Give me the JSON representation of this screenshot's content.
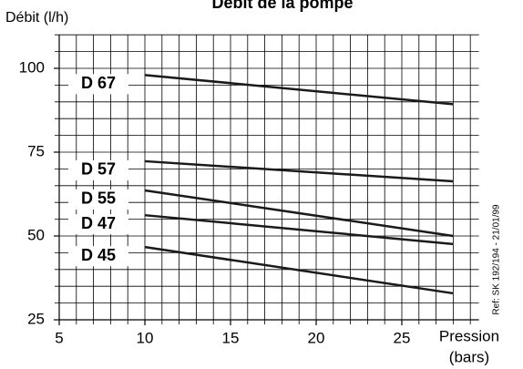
{
  "chart_data": {
    "type": "line",
    "title": "Débit de la pompe",
    "y_label": "Débit (l/h)",
    "x_label": [
      "Pression",
      "(bars)"
    ],
    "annotation": "Ref: SK 192/194 - 21/01/99",
    "x": [
      10,
      28
    ],
    "series": [
      {
        "name": "D 67",
        "color": "#1a1a1a",
        "values": [
          98,
          89.3
        ]
      },
      {
        "name": "D 57",
        "color": "#1a1a1a",
        "values": [
          72.3,
          66.3
        ]
      },
      {
        "name": "D 55",
        "color": "#1a1a1a",
        "values": [
          63.6,
          50
        ]
      },
      {
        "name": "D 47",
        "color": "#1a1a1a",
        "values": [
          56.2,
          47.6
        ]
      },
      {
        "name": "D 45",
        "color": "#1a1a1a",
        "values": [
          46.7,
          32.9
        ]
      }
    ],
    "xlim": [
      5,
      29.5
    ],
    "xticks": [
      5,
      10,
      15,
      20,
      25
    ],
    "ylim": [
      25,
      110
    ],
    "yticks": [
      25,
      50,
      75,
      100
    ],
    "grid": true,
    "grid_step": {
      "x": 1,
      "y": 5
    }
  }
}
